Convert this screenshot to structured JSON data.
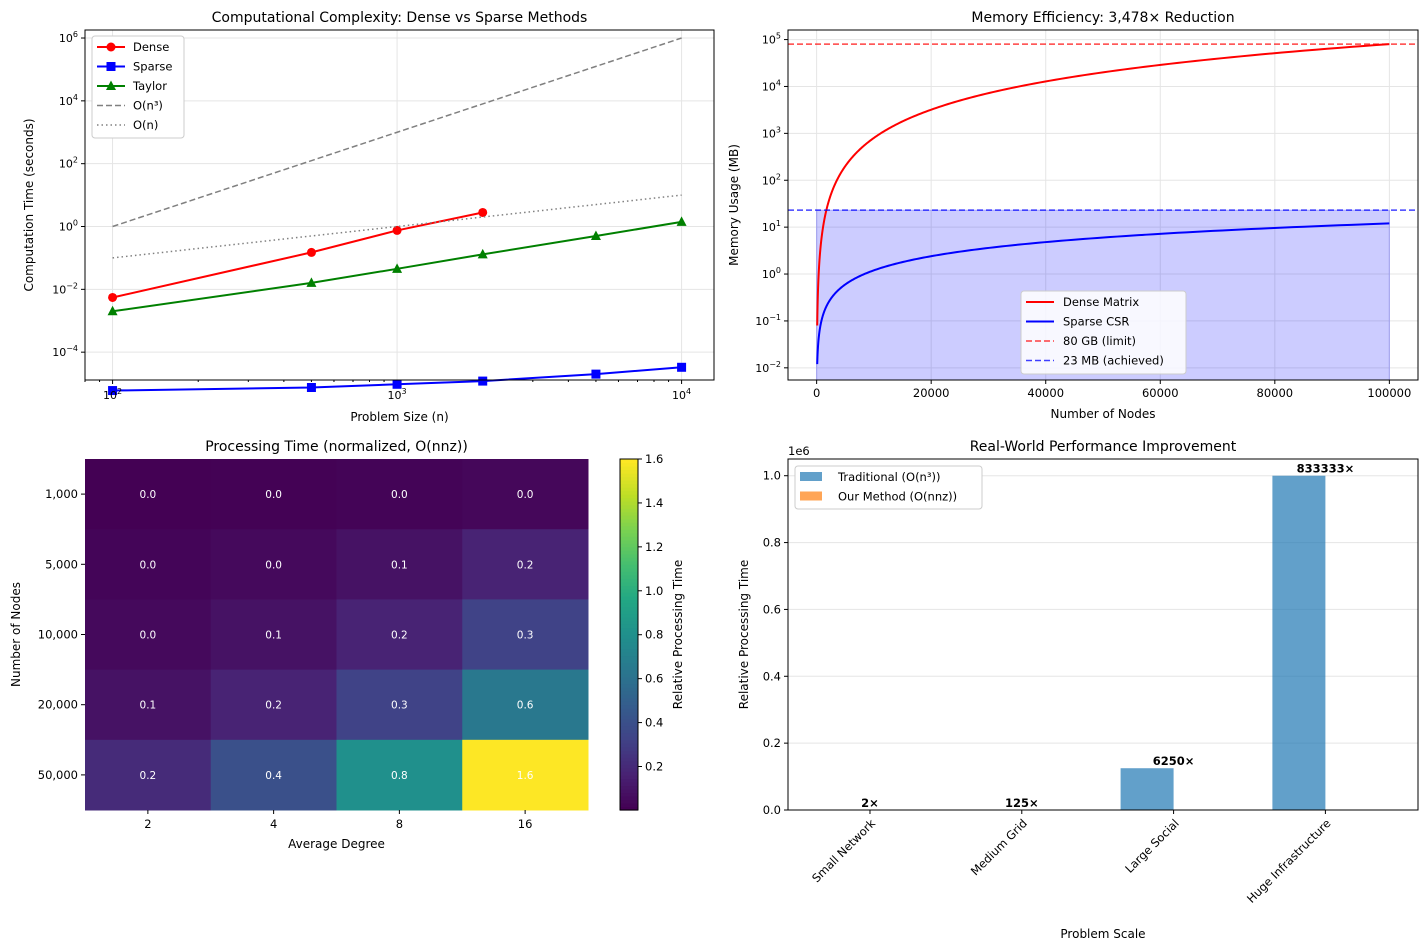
{
  "chart_data": [
    {
      "type": "line",
      "title": "Computational Complexity: Dense vs Sparse Methods",
      "xlabel": "Problem Size (n)",
      "ylabel": "Computation Time (seconds)",
      "xscale": "log",
      "yscale": "log",
      "xlim": [
        80,
        13000
      ],
      "ylim": [
        1.3e-05,
        1800000.0
      ],
      "grid": true,
      "legend": "top-left",
      "x_ticks": [
        {
          "v": 100,
          "l": "10",
          "e": "2"
        },
        {
          "v": 1000,
          "l": "10",
          "e": "3"
        },
        {
          "v": 10000,
          "l": "10",
          "e": "4"
        }
      ],
      "y_ticks": [
        {
          "v": 0.0001,
          "l": "10",
          "e": "−4"
        },
        {
          "v": 0.01,
          "l": "10",
          "e": "−2"
        },
        {
          "v": 1,
          "l": "10",
          "e": "0"
        },
        {
          "v": 100,
          "l": "10",
          "e": "2"
        },
        {
          "v": 10000.0,
          "l": "10",
          "e": "4"
        },
        {
          "v": 1000000.0,
          "l": "10",
          "e": "6"
        }
      ],
      "series": [
        {
          "name": "Dense",
          "color": "#ff0000",
          "marker": "circle",
          "style": "solid",
          "x": [
            100,
            500,
            1000,
            2000
          ],
          "y": [
            0.0055,
            0.15,
            0.75,
            2.8
          ]
        },
        {
          "name": "Sparse",
          "color": "#0000ff",
          "marker": "square",
          "style": "solid",
          "x": [
            100,
            500,
            1000,
            2000,
            5000,
            10000
          ],
          "y": [
            6e-06,
            7.5e-06,
            9.5e-06,
            1.2e-05,
            2e-05,
            3.3e-05
          ]
        },
        {
          "name": "Taylor",
          "color": "#008000",
          "marker": "triangle",
          "style": "solid",
          "x": [
            100,
            500,
            1000,
            2000,
            5000,
            10000
          ],
          "y": [
            0.002,
            0.016,
            0.045,
            0.13,
            0.5,
            1.4
          ]
        },
        {
          "name": "O(n³)",
          "color": "#808080",
          "marker": "none",
          "style": "dashed",
          "x": [
            100,
            10000
          ],
          "y": [
            1,
            1000000
          ]
        },
        {
          "name": "O(n)",
          "color": "#808080",
          "marker": "none",
          "style": "dotted",
          "x": [
            100,
            10000
          ],
          "y": [
            0.1,
            10
          ]
        }
      ]
    },
    {
      "type": "line",
      "title": "Memory Efficiency: 3,478× Reduction",
      "xlabel": "Number of Nodes",
      "ylabel": "Memory Usage (MB)",
      "yscale": "log",
      "xlim": [
        -5000,
        105000
      ],
      "ylim": [
        0.0055,
        160000
      ],
      "grid": true,
      "legend": "lower-center",
      "x_ticks": [
        "0",
        "20000",
        "40000",
        "60000",
        "80000",
        "100000"
      ],
      "y_ticks": [
        {
          "v": 0.01,
          "l": "10",
          "e": "−2"
        },
        {
          "v": 0.1,
          "l": "10",
          "e": "−1"
        },
        {
          "v": 1,
          "l": "10",
          "e": "0"
        },
        {
          "v": 10,
          "l": "10",
          "e": "1"
        },
        {
          "v": 100,
          "l": "10",
          "e": "2"
        },
        {
          "v": 1000,
          "l": "10",
          "e": "3"
        },
        {
          "v": 10000,
          "l": "10",
          "e": "4"
        },
        {
          "v": 100000,
          "l": "10",
          "e": "5"
        }
      ],
      "series": [
        {
          "name": "Dense Matrix",
          "color": "#ff0000",
          "style": "solid",
          "formula": "8e-6*n^2",
          "x_range": [
            100,
            100000
          ]
        },
        {
          "name": "Sparse CSR",
          "color": "#0000ff",
          "style": "solid",
          "formula": "1.2e-4*n",
          "x_range": [
            100,
            100000
          ]
        },
        {
          "name": "80 GB (limit)",
          "color": "#ff0000",
          "style": "dashed",
          "hline": 80000
        },
        {
          "name": "23 MB (achieved)",
          "color": "#0000ff",
          "style": "dashed",
          "hline": 23
        }
      ],
      "fill": {
        "x_range": [
          0,
          100000
        ],
        "y_range": [
          0,
          23
        ],
        "color": "#0000ff"
      }
    },
    {
      "type": "heatmap",
      "title": "Processing Time (normalized, O(nnz))",
      "xlabel": "Average Degree",
      "ylabel": "Number of Nodes",
      "colorbar_label": "Relative Processing Time",
      "colormap": "viridis",
      "vmin": 0.002,
      "vmax": 1.6,
      "columns": [
        "2",
        "4",
        "8",
        "16"
      ],
      "rows": [
        "1,000",
        "5,000",
        "10,000",
        "20,000",
        "50,000"
      ],
      "values": [
        [
          0.004,
          0.008,
          0.016,
          0.032
        ],
        [
          0.02,
          0.04,
          0.08,
          0.16
        ],
        [
          0.04,
          0.08,
          0.16,
          0.32
        ],
        [
          0.08,
          0.16,
          0.32,
          0.64
        ],
        [
          0.2,
          0.4,
          0.8,
          1.6
        ]
      ],
      "labels": [
        [
          "0.0",
          "0.0",
          "0.0",
          "0.0"
        ],
        [
          "0.0",
          "0.0",
          "0.1",
          "0.2"
        ],
        [
          "0.0",
          "0.1",
          "0.2",
          "0.3"
        ],
        [
          "0.1",
          "0.2",
          "0.3",
          "0.6"
        ],
        [
          "0.2",
          "0.4",
          "0.8",
          "1.6"
        ]
      ],
      "colorbar_ticks": [
        "0.2",
        "0.4",
        "0.6",
        "0.8",
        "1.0",
        "1.2",
        "1.4",
        "1.6"
      ]
    },
    {
      "type": "bar",
      "title": "Real-World Performance Improvement",
      "xlabel": "Problem Scale",
      "ylabel": "Relative Processing Time",
      "offset_label": "1e6",
      "ylim": [
        0,
        1050000
      ],
      "legend": "top-left",
      "categories": [
        "Small Network",
        "Medium Grid",
        "Large Social",
        "Huge Infrastructure"
      ],
      "y_ticks": [
        "0.0",
        "0.2",
        "0.4",
        "0.6",
        "0.8",
        "1.0"
      ],
      "series": [
        {
          "name": "Traditional (O(n³))",
          "color": "#1f77b4",
          "values": [
            8,
            1000,
            125000,
            1000000
          ]
        },
        {
          "name": "Our Method (O(nnz))",
          "color": "#ff7f0e",
          "values": [
            4,
            8,
            20,
            1.2
          ]
        }
      ],
      "annotations": [
        "2×",
        "125×",
        "6250×",
        "833333×"
      ]
    }
  ]
}
